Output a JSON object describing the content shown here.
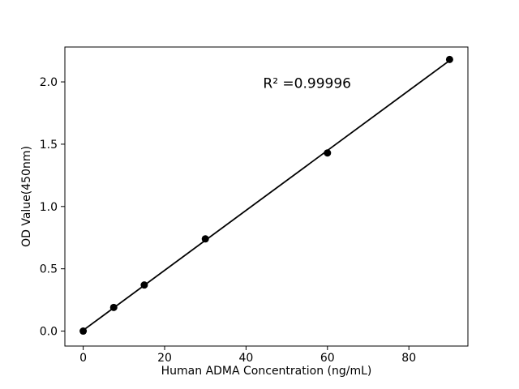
{
  "figure": {
    "background": "#ffffff"
  },
  "chart_data": {
    "type": "scatter",
    "title": "",
    "xlabel": "Human ADMA Concentration (ng/mL)",
    "ylabel": "OD Value(450nm)",
    "x": [
      0,
      7.5,
      15,
      30,
      60,
      90
    ],
    "y": [
      0.0,
      0.19,
      0.37,
      0.74,
      1.43,
      2.18
    ],
    "fit": {
      "type": "linear",
      "annotation": "R² =0.99996",
      "annotation_xy": [
        55,
        1.99
      ]
    },
    "xticks": [
      "0",
      "20",
      "40",
      "60",
      "80"
    ],
    "yticks": [
      "0.0",
      "0.5",
      "1.0",
      "1.5",
      "2.0"
    ],
    "xlim": [
      -4.5,
      94.5
    ],
    "ylim": [
      -0.12,
      2.28
    ],
    "grid": false,
    "legend_position": "none",
    "marker": "circle",
    "color": "#000000",
    "background": "#ffffff"
  }
}
